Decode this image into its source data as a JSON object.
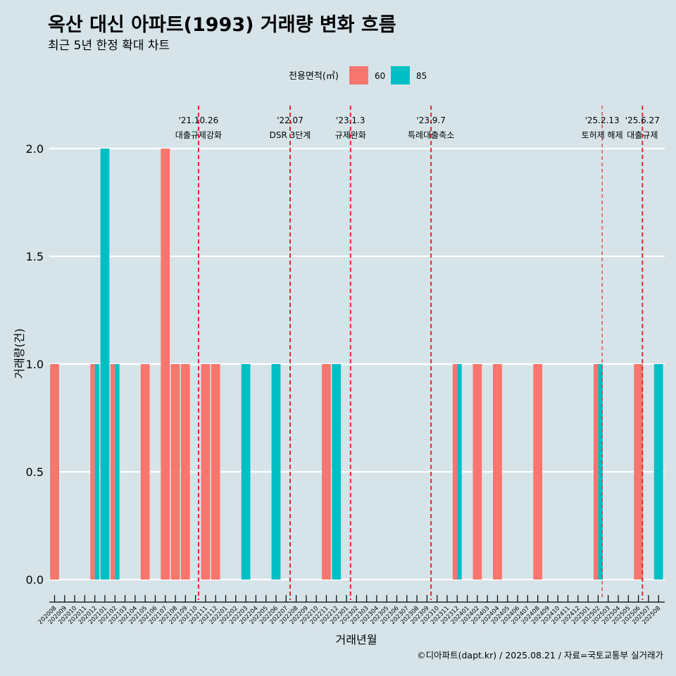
{
  "chart_data": {
    "type": "bar",
    "title": "옥산 대신 아파트(1993) 거래량 변화 흐름",
    "subtitle": "최근 5년 한정 확대 차트",
    "xlabel": "거래년월",
    "ylabel": "거래량(건)",
    "ylim": [
      0,
      2
    ],
    "yticks": [
      "0.0",
      "0.5",
      "1.0",
      "1.5",
      "2.0"
    ],
    "ytick_values": [
      0,
      0.5,
      1,
      1.5,
      2
    ],
    "legend": {
      "title": "전용면적(㎡)",
      "placement": "top",
      "items": [
        {
          "name": "60",
          "color": "#f8766d"
        },
        {
          "name": "85",
          "color": "#00bfc4"
        }
      ]
    },
    "categories": [
      "202008",
      "202009",
      "202010",
      "202011",
      "202012",
      "202101",
      "202102",
      "202103",
      "202104",
      "202105",
      "202106",
      "202107",
      "202108",
      "202109",
      "202110",
      "202111",
      "202112",
      "202201",
      "202202",
      "202203",
      "202204",
      "202205",
      "202206",
      "202207",
      "202208",
      "202209",
      "202210",
      "202211",
      "202212",
      "202301",
      "202302",
      "202303",
      "202304",
      "202305",
      "202306",
      "202307",
      "202308",
      "202309",
      "202310",
      "202311",
      "202312",
      "202401",
      "202402",
      "202403",
      "202404",
      "202405",
      "202406",
      "202407",
      "202408",
      "202409",
      "202410",
      "202411",
      "202412",
      "202501",
      "202502",
      "202503",
      "202504",
      "202505",
      "202506",
      "202507",
      "202508"
    ],
    "series": [
      {
        "name": "60",
        "color": "#f8766d",
        "values": [
          1,
          0,
          0,
          0,
          1,
          0,
          1,
          0,
          0,
          1,
          0,
          2,
          1,
          1,
          0,
          1,
          1,
          0,
          0,
          0,
          0,
          0,
          0,
          0,
          0,
          0,
          0,
          1,
          0,
          0,
          0,
          0,
          0,
          0,
          0,
          0,
          0,
          0,
          0,
          0,
          1,
          0,
          1,
          0,
          1,
          0,
          0,
          0,
          1,
          0,
          0,
          0,
          0,
          0,
          1,
          0,
          0,
          0,
          1,
          0,
          0
        ]
      },
      {
        "name": "85",
        "color": "#00bfc4",
        "values": [
          0,
          0,
          0,
          0,
          1,
          2,
          1,
          0,
          0,
          0,
          0,
          0,
          0,
          0,
          0,
          0,
          0,
          0,
          0,
          1,
          0,
          0,
          1,
          0,
          0,
          0,
          0,
          0,
          1,
          0,
          0,
          0,
          0,
          0,
          0,
          0,
          0,
          0,
          0,
          0,
          1,
          0,
          0,
          0,
          0,
          0,
          0,
          0,
          0,
          0,
          0,
          0,
          0,
          0,
          1,
          0,
          0,
          0,
          0,
          0,
          1
        ]
      }
    ],
    "annotations": [
      {
        "date": "'21.10.26",
        "label": "대출규제강화",
        "month_index": 14.3,
        "style": "bold"
      },
      {
        "date": "'22.07",
        "label": "DSR 3단계",
        "month_index": 23.4,
        "style": "bold"
      },
      {
        "date": "'23.1.3",
        "label": "규제완화",
        "month_index": 29.4,
        "style": "bold"
      },
      {
        "date": "'23.9.7",
        "label": "특례대출축소",
        "month_index": 37.4,
        "style": "bold"
      },
      {
        "date": "'25.2.13",
        "label": "토허제 해제",
        "month_index": 54.4,
        "style": "thin"
      },
      {
        "date": "'25.6.27",
        "label": "대출규제",
        "month_index": 58.4,
        "style": "bold"
      }
    ]
  },
  "caption": "©디아파트(dapt.kr) / 2025.08.21 / 자료=국토교통부 실거래가",
  "colors": {
    "background": "#d6e4ea",
    "grid": "#ffffff",
    "vline": "#e8252a"
  }
}
